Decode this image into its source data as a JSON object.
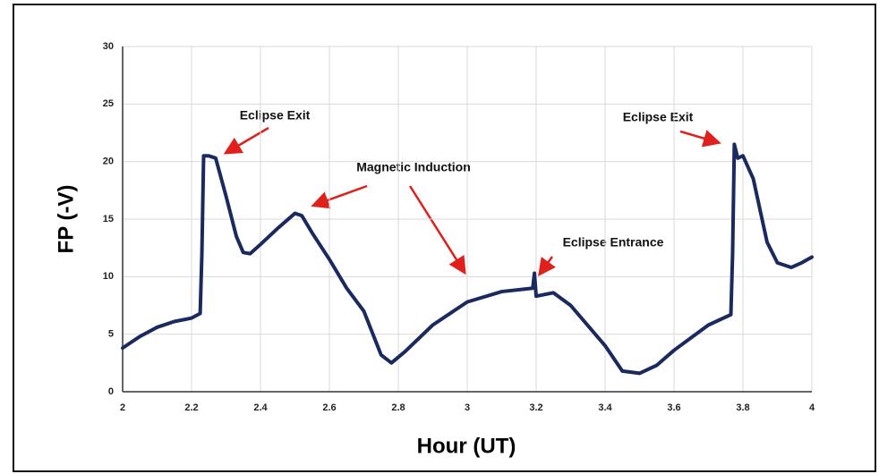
{
  "chart_data": {
    "type": "line",
    "xlabel": "Hour (UT)",
    "ylabel": "FP (-V)",
    "xlim": [
      2,
      4
    ],
    "xticks": [
      2,
      2.2,
      2.4,
      2.6,
      2.8,
      3,
      3.2,
      3.4,
      3.6,
      3.8,
      4
    ],
    "ylim": [
      0,
      30
    ],
    "yticks": [
      0,
      5,
      10,
      15,
      20,
      25,
      30
    ],
    "grid": true,
    "series": [
      {
        "color": "#1b2a5e",
        "x": [
          2.0,
          2.05,
          2.1,
          2.15,
          2.2,
          2.225,
          2.23,
          2.235,
          2.25,
          2.27,
          2.3,
          2.33,
          2.35,
          2.37,
          2.4,
          2.45,
          2.5,
          2.52,
          2.55,
          2.6,
          2.65,
          2.7,
          2.75,
          2.78,
          2.82,
          2.9,
          3.0,
          3.1,
          3.19,
          3.195,
          3.2,
          3.25,
          3.3,
          3.4,
          3.45,
          3.5,
          3.55,
          3.6,
          3.7,
          3.765,
          3.77,
          3.775,
          3.785,
          3.8,
          3.83,
          3.87,
          3.9,
          3.94,
          3.97,
          4.0
        ],
        "values": [
          3.8,
          4.8,
          5.6,
          6.1,
          6.4,
          6.8,
          12,
          20.5,
          20.5,
          20.3,
          17,
          13.5,
          12.1,
          12,
          12.8,
          14.2,
          15.5,
          15.3,
          13.8,
          11.5,
          9,
          7,
          3.2,
          2.5,
          3.5,
          5.8,
          7.8,
          8.7,
          9,
          10.3,
          8.3,
          8.6,
          7.5,
          4,
          1.8,
          1.6,
          2.3,
          3.6,
          5.8,
          6.7,
          12,
          21.5,
          20.3,
          20.5,
          18.5,
          13,
          11.2,
          10.8,
          11.2,
          11.7
        ]
      }
    ],
    "annotations": [
      "Eclipse Exit",
      "Magnetic Induction",
      "Eclipse Entrance",
      "Eclipse Exit"
    ]
  }
}
